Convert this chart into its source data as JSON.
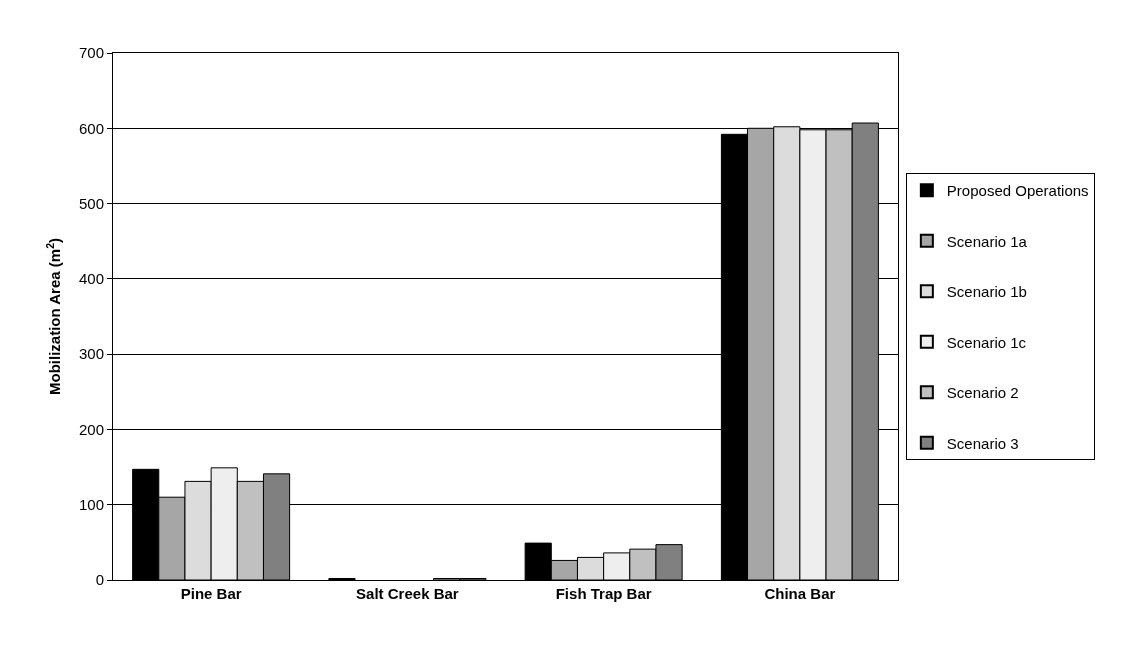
{
  "chart_data": {
    "type": "bar",
    "ylabel": "Mobilization Area (m$^{2}$)",
    "categories": [
      "Pine Bar",
      "Salt Creek Bar",
      "Fish Trap Bar",
      "China Bar"
    ],
    "series": [
      {
        "name": "Proposed Operations",
        "color": "#000000",
        "values": [
          147,
          2,
          49,
          592
        ]
      },
      {
        "name": "Scenario 1a",
        "color": "#a6a6a6",
        "values": [
          110,
          0,
          26,
          600
        ]
      },
      {
        "name": "Scenario 1b",
        "color": "#dcdcdc",
        "values": [
          131,
          0,
          30,
          602
        ]
      },
      {
        "name": "Scenario 1c",
        "color": "#eeeeee",
        "values": [
          149,
          0,
          36,
          598
        ]
      },
      {
        "name": "Scenario 2",
        "color": "#c0c0c0",
        "values": [
          131,
          2,
          41,
          598
        ]
      },
      {
        "name": "Scenario 3",
        "color": "#808080",
        "values": [
          141,
          2,
          47,
          607
        ]
      }
    ],
    "ylim": [
      0,
      700
    ],
    "yticks": [
      0,
      100,
      200,
      300,
      400,
      500,
      600,
      700
    ],
    "grid": "y",
    "legend": "right"
  }
}
